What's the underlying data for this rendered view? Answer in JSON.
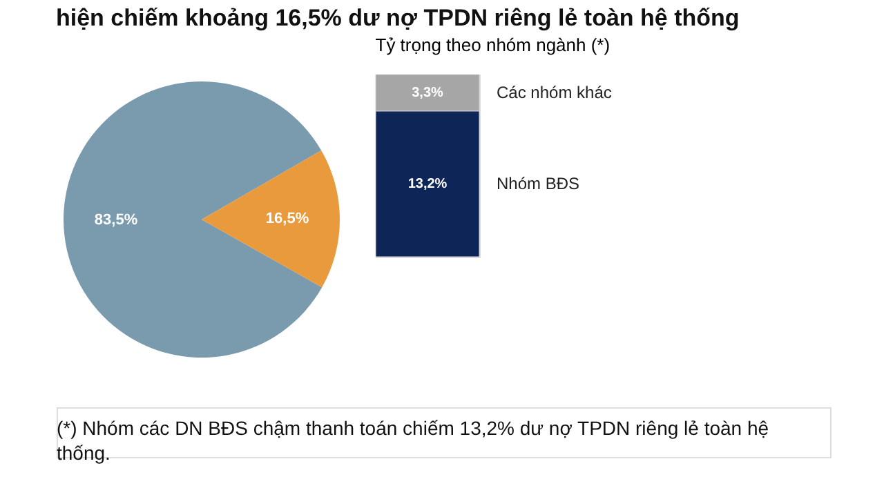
{
  "chart_data": [
    {
      "type": "pie",
      "title": "hiện chiếm khoảng 16,5% dư nợ TPDN riêng lẻ toàn hệ thống",
      "categories": [
        null,
        null
      ],
      "values": [
        83.5,
        16.5
      ],
      "colors": [
        "#7a9aae",
        "#e89a3c"
      ],
      "value_labels": [
        "83,5%",
        "16,5%"
      ],
      "legend": false,
      "annotations": [
        "(*) Nhóm các DN BĐS chậm thanh toán chiếm 13,2% dư nợ TPDN riêng lẻ toàn hệ thống."
      ]
    },
    {
      "type": "bar",
      "title": "Tỷ trọng theo nhóm ngành (*)",
      "stacked": true,
      "categories": [
        null
      ],
      "tick_labels": false,
      "series": [
        {
          "name": "Nhóm BĐS",
          "color": "#0d2657",
          "values": [
            13.2
          ],
          "value_labels": [
            "13,2%"
          ]
        },
        {
          "name": "Các nhóm khác",
          "color": "#a6a6a6",
          "values": [
            3.3
          ],
          "value_labels": [
            "3,3%"
          ]
        }
      ]
    }
  ]
}
